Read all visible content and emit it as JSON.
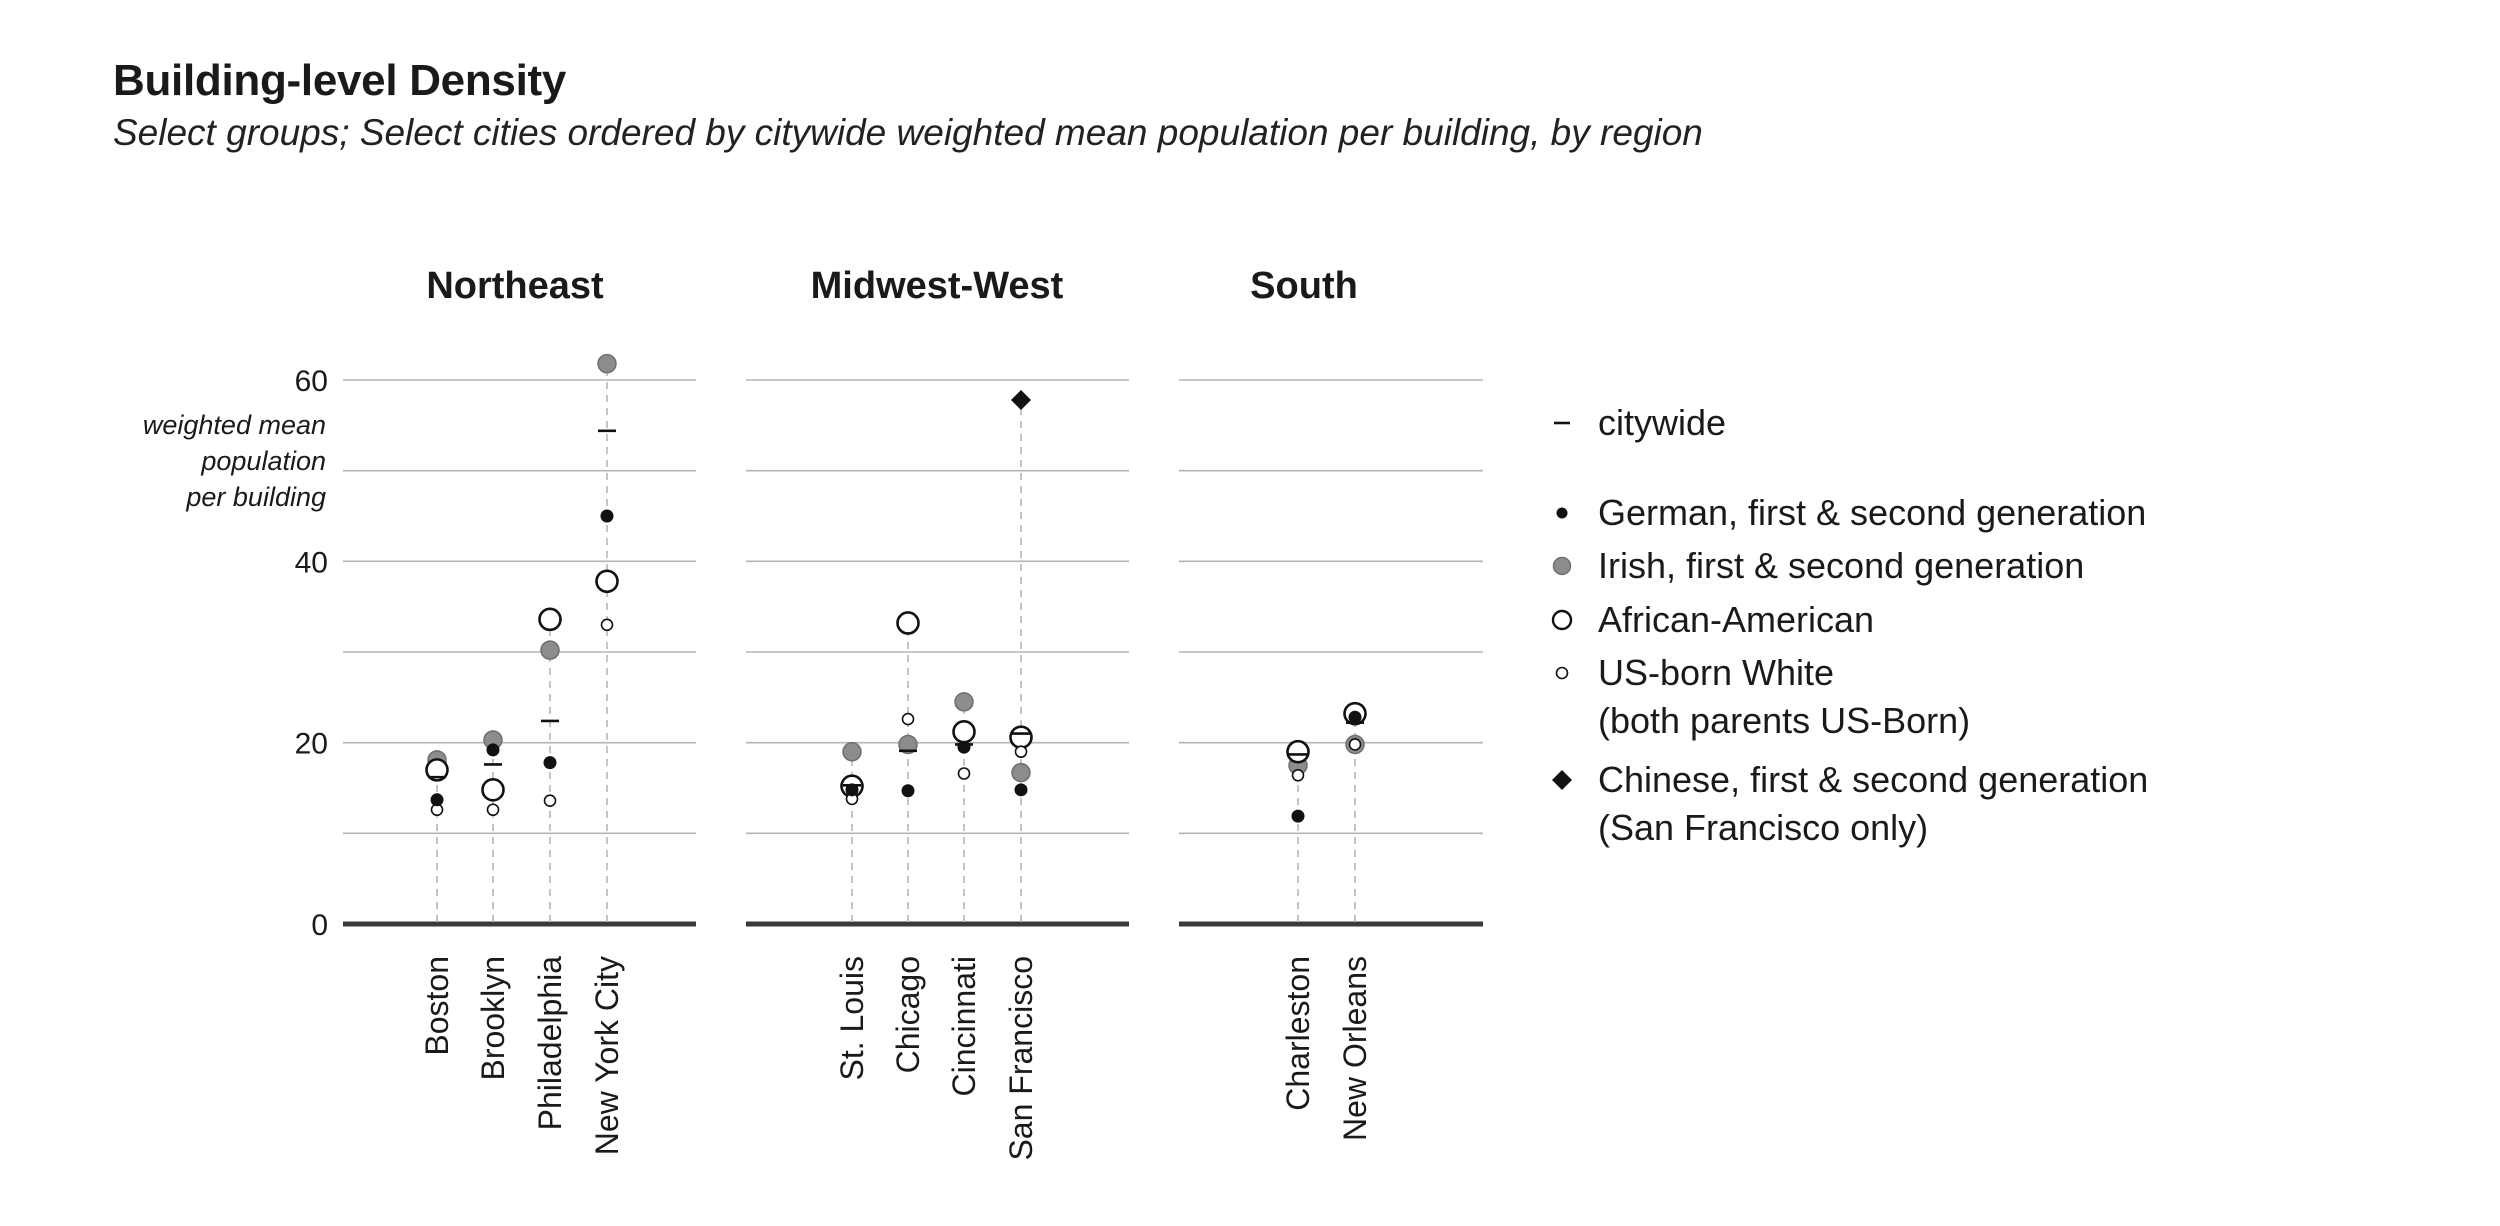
{
  "chart_data": {
    "type": "scatter",
    "title": "Building-level Density",
    "subtitle": "Select groups; Select cities ordered by citywide weighted mean population per building, by region",
    "ylabel_lines": [
      "weighted mean",
      "population",
      "per building"
    ],
    "ylim": [
      0,
      60
    ],
    "yticks": [
      "0",
      "20",
      "40",
      "60"
    ],
    "grid": true,
    "legend_placement": "right",
    "panels": [
      {
        "region": "Northeast",
        "cities": [
          {
            "name": "Boston",
            "citywide": 16.2,
            "german": 13.7,
            "irish": 18.1,
            "african_american": 17.0,
            "us_born_white": 12.6
          },
          {
            "name": "Brooklyn",
            "citywide": 17.6,
            "german": 19.2,
            "irish": 20.3,
            "african_american": 14.8,
            "us_born_white": 12.6
          },
          {
            "name": "Philadelphia",
            "citywide": 22.4,
            "german": 17.8,
            "irish": 30.2,
            "african_american": 33.6,
            "us_born_white": 13.6
          },
          {
            "name": "New York City",
            "citywide": 54.4,
            "german": 45.0,
            "irish": 61.8,
            "african_american": 37.8,
            "us_born_white": 33.0
          }
        ]
      },
      {
        "region": "Midwest-West",
        "cities": [
          {
            "name": "St. Louis",
            "citywide": 15.3,
            "german": 14.8,
            "irish": 19.0,
            "african_american": 15.2,
            "us_born_white": 13.8
          },
          {
            "name": "Chicago",
            "citywide": 19.1,
            "german": 14.7,
            "irish": 19.8,
            "african_american": 33.2,
            "us_born_white": 22.6
          },
          {
            "name": "Cincinnati",
            "citywide": 19.8,
            "german": 19.5,
            "irish": 24.5,
            "african_american": 21.2,
            "us_born_white": 16.6
          },
          {
            "name": "San Francisco",
            "citywide": 21.0,
            "german": 14.8,
            "irish": 16.7,
            "african_american": 20.6,
            "us_born_white": 19.0,
            "chinese": 57.8
          }
        ]
      },
      {
        "region": "South",
        "cities": [
          {
            "name": "Charleston",
            "citywide": 18.7,
            "german": 11.9,
            "irish": 17.5,
            "african_american": 19.0,
            "us_born_white": 16.4
          },
          {
            "name": "New Orleans",
            "citywide": 22.2,
            "german": 22.8,
            "irish": 19.8,
            "african_american": 23.2,
            "us_born_white": 19.8
          }
        ]
      }
    ],
    "legend": [
      {
        "key": "citywide",
        "lines": [
          "citywide"
        ]
      },
      {
        "key": "german",
        "lines": [
          "German, first & second generation"
        ]
      },
      {
        "key": "irish",
        "lines": [
          "Irish, first & second generation"
        ]
      },
      {
        "key": "african_american",
        "lines": [
          "African-American"
        ]
      },
      {
        "key": "us_born_white",
        "lines": [
          "US-born White",
          "(both parents US-Born)"
        ]
      },
      {
        "key": "chinese",
        "lines": [
          "Chinese, first & second generation",
          "(San Francisco only)"
        ]
      }
    ],
    "colors": {
      "german": "#111111",
      "irish": "#8c8c8c",
      "african_american_fill": "#ffffff",
      "outline": "#111111",
      "chinese": "#111111",
      "grid": "#b5b5b5",
      "baseline": "#3a3a3a",
      "stem": "#bdbdbd"
    }
  }
}
